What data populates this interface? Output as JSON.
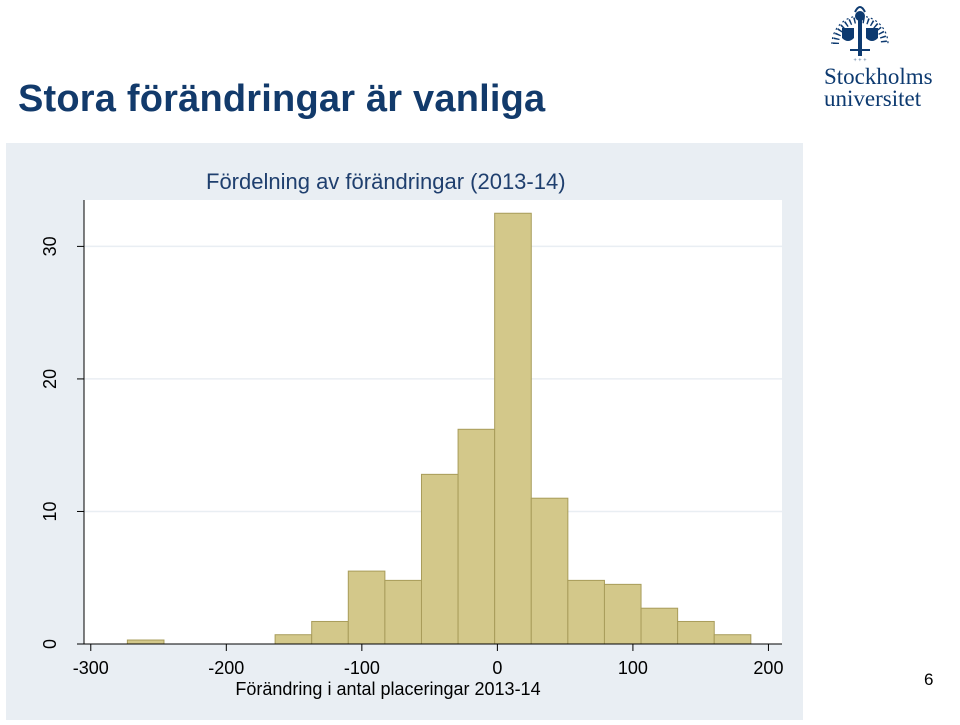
{
  "slide": {
    "title": "Stora förändringar är vanliga",
    "page_number": "6"
  },
  "logo": {
    "line1": "Stockholms",
    "line2": "universitet",
    "seal_text": "STOCKHOLMS UNIVERSITET"
  },
  "colors": {
    "title": "#123a6b",
    "bar_fill": "#d3c88a",
    "bar_stroke": "#a89c5a",
    "plot_background": "#ffffff",
    "panel_background": "#e9eef3",
    "gridline": "#e9eef3",
    "logo": "#0d3a70"
  },
  "chart_data": {
    "type": "bar",
    "subtype": "histogram",
    "title": "Fördelning av förändringar (2013-14)",
    "xlabel": "Förändring i antal placeringar 2013-14",
    "ylabel": "",
    "xlim": [
      -305,
      210
    ],
    "ylim": [
      0,
      33.5
    ],
    "grid": true,
    "xticks": [
      {
        "value": -300,
        "label": "-300"
      },
      {
        "value": -200,
        "label": "-200"
      },
      {
        "value": -100,
        "label": "-100"
      },
      {
        "value": 0,
        "label": "0"
      },
      {
        "value": 100,
        "label": "100"
      },
      {
        "value": 200,
        "label": "200"
      }
    ],
    "yticks": [
      {
        "value": 0,
        "label": "0"
      },
      {
        "value": 10,
        "label": "10"
      },
      {
        "value": 20,
        "label": "20"
      },
      {
        "value": 30,
        "label": "30"
      }
    ],
    "bins": [
      {
        "x0": -273,
        "x1": -246,
        "value": 0.3
      },
      {
        "x0": -164,
        "x1": -137,
        "value": 0.7
      },
      {
        "x0": -137,
        "x1": -110,
        "value": 1.7
      },
      {
        "x0": -110,
        "x1": -83,
        "value": 5.5
      },
      {
        "x0": -83,
        "x1": -56,
        "value": 4.8
      },
      {
        "x0": -56,
        "x1": -29,
        "value": 12.8
      },
      {
        "x0": -29,
        "x1": -2,
        "value": 16.2
      },
      {
        "x0": -2,
        "x1": 25,
        "value": 32.5
      },
      {
        "x0": 25,
        "x1": 52,
        "value": 11.0
      },
      {
        "x0": 52,
        "x1": 79,
        "value": 4.8
      },
      {
        "x0": 79,
        "x1": 106,
        "value": 4.5
      },
      {
        "x0": 106,
        "x1": 133,
        "value": 2.7
      },
      {
        "x0": 133,
        "x1": 160,
        "value": 1.7
      },
      {
        "x0": 160,
        "x1": 187,
        "value": 0.7
      }
    ]
  }
}
